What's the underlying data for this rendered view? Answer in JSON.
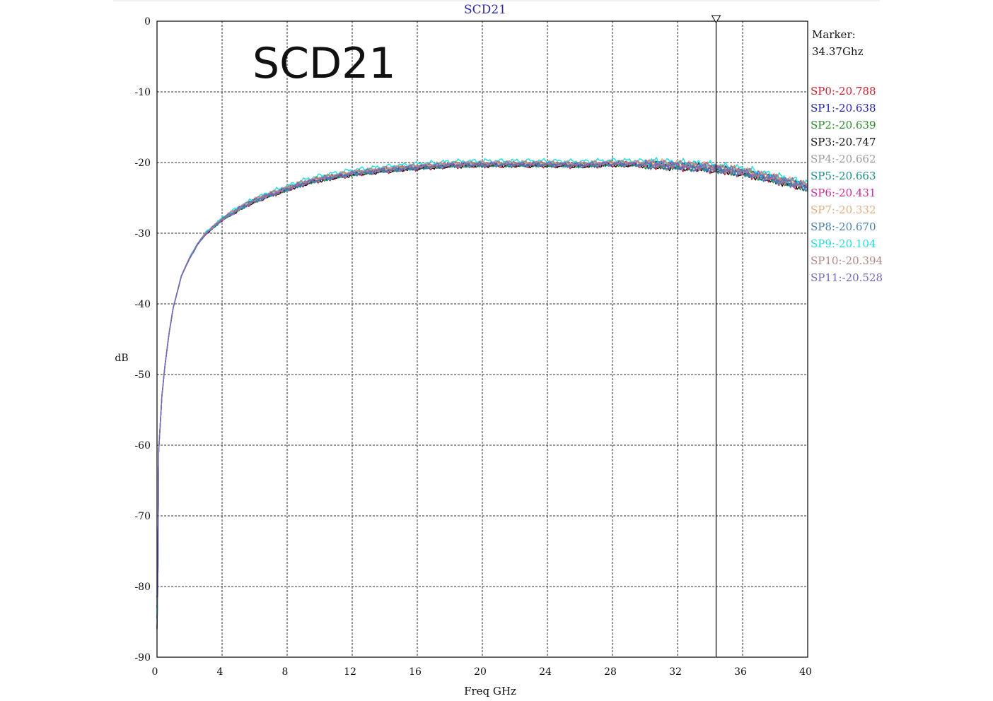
{
  "chart_data": {
    "type": "line",
    "title": "SCD21",
    "overlay_label": "SCD21",
    "xlabel": "Freq GHz",
    "ylabel": "dB",
    "xlim": [
      0,
      40
    ],
    "ylim": [
      -90,
      0
    ],
    "x_ticks": [
      0,
      4,
      8,
      12,
      16,
      20,
      24,
      28,
      32,
      36,
      40
    ],
    "y_ticks": [
      0,
      -10,
      -20,
      -30,
      -40,
      -50,
      -60,
      -70,
      -80,
      -90
    ],
    "grid": true,
    "marker": {
      "label": "Marker:",
      "freq_text": "34.37Ghz",
      "x": 34.37
    },
    "legend_position": "right",
    "base_curve": {
      "x": [
        0,
        0.05,
        0.1,
        0.2,
        0.3,
        0.5,
        0.75,
        1,
        1.5,
        2,
        2.5,
        3,
        4,
        5,
        6,
        7,
        8,
        9,
        10,
        12,
        14,
        16,
        18,
        20,
        22,
        24,
        26,
        28,
        30,
        32,
        34,
        36,
        38,
        40
      ],
      "y": [
        -86,
        -80,
        -61,
        -57,
        -53,
        -48.5,
        -44,
        -40.5,
        -36,
        -33.5,
        -31.5,
        -30,
        -28,
        -26.5,
        -25.3,
        -24.4,
        -23.6,
        -22.8,
        -22.2,
        -21.4,
        -20.9,
        -20.5,
        -20.2,
        -20.1,
        -20.1,
        -20.1,
        -20.2,
        -20.0,
        -20.1,
        -20.3,
        -20.6,
        -21.2,
        -22.2,
        -23.3
      ]
    },
    "series": [
      {
        "name": "SP0",
        "value_text": "-20.788",
        "color": "#cc2233",
        "offset": -0.35
      },
      {
        "name": "SP1",
        "value_text": "-20.638",
        "color": "#2222aa",
        "offset": -0.2
      },
      {
        "name": "SP2",
        "value_text": "-20.639",
        "color": "#2a8a2a",
        "offset": -0.2
      },
      {
        "name": "SP3",
        "value_text": "-20.747",
        "color": "#111111",
        "offset": -0.3
      },
      {
        "name": "SP4",
        "value_text": "-20.662",
        "color": "#9a9a9a",
        "offset": -0.22
      },
      {
        "name": "SP5",
        "value_text": "-20.663",
        "color": "#1a8a8a",
        "offset": -0.22
      },
      {
        "name": "SP6",
        "value_text": "-20.431",
        "color": "#cc2a99",
        "offset": 0.0
      },
      {
        "name": "SP7",
        "value_text": "-20.332",
        "color": "#e0b080",
        "offset": 0.1
      },
      {
        "name": "SP8",
        "value_text": "-20.670",
        "color": "#4a7fa8",
        "offset": -0.23
      },
      {
        "name": "SP9",
        "value_text": "-20.104",
        "color": "#22dddd",
        "offset": 0.33
      },
      {
        "name": "SP10",
        "value_text": "-20.394",
        "color": "#b08888",
        "offset": 0.04
      },
      {
        "name": "SP11",
        "value_text": "-20.528",
        "color": "#7766bb",
        "offset": -0.1
      }
    ]
  }
}
